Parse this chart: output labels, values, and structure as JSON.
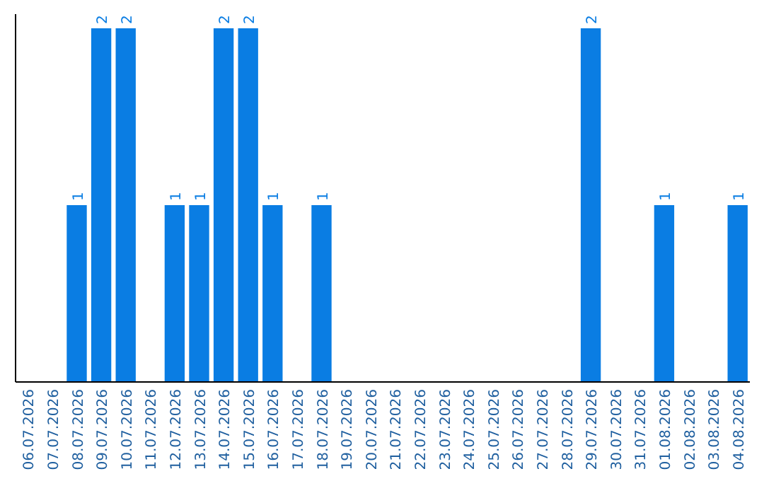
{
  "chart_data": {
    "type": "bar",
    "categories": [
      "06.07.2026",
      "07.07.2026",
      "08.07.2026",
      "09.07.2026",
      "10.07.2026",
      "11.07.2026",
      "12.07.2026",
      "13.07.2026",
      "14.07.2026",
      "15.07.2026",
      "16.07.2026",
      "17.07.2026",
      "18.07.2026",
      "19.07.2026",
      "20.07.2026",
      "21.07.2026",
      "22.07.2026",
      "23.07.2026",
      "24.07.2026",
      "25.07.2026",
      "26.07.2026",
      "27.07.2026",
      "28.07.2026",
      "29.07.2026",
      "30.07.2026",
      "31.07.2026",
      "01.08.2026",
      "02.08.2026",
      "03.08.2026",
      "04.08.2026"
    ],
    "values": [
      0,
      0,
      1,
      2,
      2,
      0,
      1,
      1,
      2,
      2,
      1,
      0,
      1,
      0,
      0,
      0,
      0,
      0,
      0,
      0,
      0,
      0,
      0,
      2,
      0,
      0,
      1,
      0,
      0,
      1
    ],
    "value_labels": [
      null,
      null,
      "1",
      "2",
      "2",
      null,
      "1",
      "1",
      "2",
      "2",
      "1",
      null,
      "1",
      null,
      null,
      null,
      null,
      null,
      null,
      null,
      null,
      null,
      null,
      "2",
      null,
      null,
      "1",
      null,
      null,
      "1"
    ],
    "color": "#0a7de3",
    "tick_labels": "x",
    "grid": false
  }
}
